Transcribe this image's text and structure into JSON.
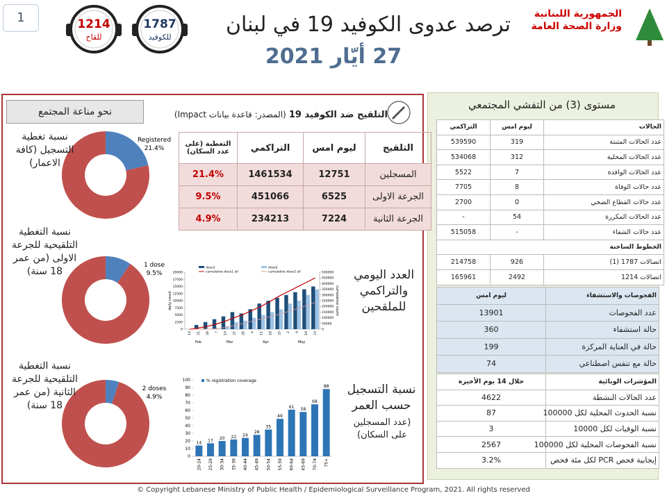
{
  "header": {
    "page_number": "1",
    "ministry": "الجمهورية اللبنانية",
    "ministry_sub": "وزارة الصحة العامة",
    "title": "ترصد عدوى الكوفيد 19 في لبنان",
    "date": "27 أيّار 2021",
    "hotlines": [
      {
        "number": "1787",
        "label": "للكوفيد"
      },
      {
        "number": "1214",
        "label": "للقاح"
      }
    ]
  },
  "vaccination": {
    "heading": "نحو مناعة المجتمع",
    "title": "التلقيح ضد الكوفيد 19",
    "source": "(المصدر: قاعدة بيانات Impact)",
    "donut_colors": {
      "value": "#4f81bd",
      "rest": "#c0504d"
    },
    "donuts": [
      {
        "description": "نسبة تغطية التسجيل (كافة الاعمار)",
        "slice_label": "Registered",
        "value": 21.4,
        "value_label": "21.4%"
      },
      {
        "description": "نسبة التغطية التلقيحية للجرعة الاولى (من عمر 18 سنة)",
        "slice_label": "1 dose",
        "value": 9.5,
        "value_label": "9.5%"
      },
      {
        "description": "نسبة التغطية التلقيحية للجرعة الثانية (من عمر 18 سنة)",
        "slice_label": "2 doses",
        "value": 4.9,
        "value_label": "4.9%"
      }
    ],
    "table": {
      "header": [
        "التلقيح",
        "ليوم امس",
        "التراكمي",
        "التغطية (على عدد السكان)"
      ],
      "rows": [
        [
          "المسجلين",
          12751,
          1461534,
          "21.4%"
        ],
        [
          "الجرعة الاولى",
          6525,
          451066,
          "9.5%"
        ],
        [
          "الجرعة الثانية",
          7224,
          234213,
          "4.9%"
        ]
      ]
    },
    "daily_chart": {
      "type": "bar",
      "title": "العدد اليومي والتراكمي للملقحين",
      "ylabel": "daily count",
      "y2label": "cumulative count",
      "categories": [
        "14",
        "21",
        "28",
        "7",
        "14",
        "21",
        "28",
        "4",
        "11",
        "18",
        "25",
        "2",
        "9",
        "16",
        "23"
      ],
      "months": [
        "Feb",
        "Mar",
        "Apr",
        "May"
      ],
      "series": [
        {
          "name": "dose1",
          "color": "#1f4e79",
          "values": [
            0,
            1500,
            2500,
            3500,
            4500,
            6000,
            5500,
            7000,
            9000,
            10000,
            11000,
            12000,
            13000,
            14000,
            15000
          ]
        },
        {
          "name": "dose2",
          "color": "#9dc3e6",
          "values": [
            0,
            0,
            0,
            0,
            1000,
            2500,
            3000,
            4000,
            5000,
            6000,
            7000,
            9000,
            10000,
            12000,
            14000
          ]
        },
        {
          "name": "cumulative dose1 all",
          "color": "#c00000",
          "axis": "y2",
          "values": [
            0,
            10000,
            25000,
            45000,
            70000,
            100000,
            130000,
            165000,
            200000,
            245000,
            290000,
            330000,
            370000,
            410000,
            450000
          ]
        },
        {
          "name": "cumulative dose2 all",
          "color": "#e6a0a0",
          "axis": "y2",
          "values": [
            0,
            0,
            0,
            5000,
            15000,
            30000,
            50000,
            70000,
            90000,
            110000,
            130000,
            155000,
            180000,
            205000,
            235000
          ]
        }
      ],
      "ylim": [
        0,
        20000
      ],
      "yticks": [
        0,
        2500,
        5000,
        7500,
        10000,
        12500,
        15000,
        17500,
        20000
      ],
      "y2lim": [
        0,
        500000
      ],
      "y2ticks": [
        0,
        50000,
        100000,
        150000,
        200000,
        250000,
        300000,
        350000,
        400000,
        450000,
        500000
      ]
    },
    "age_chart": {
      "type": "bar",
      "title": "نسبة التسجيل حسب العمر",
      "subtitle": "(عدد المسجلين على السكان)",
      "series_name": "% registration coverage",
      "color": "#2e75b6",
      "categories": [
        "20-24",
        "25-29",
        "30-34",
        "35-39",
        "40-44",
        "45-49",
        "50-54",
        "55-59",
        "60-64",
        "65-69",
        "70-74",
        "75+"
      ],
      "values": [
        14,
        17,
        20,
        22,
        24,
        28,
        35,
        49,
        61,
        58,
        68,
        88
      ],
      "ylim": [
        0,
        100
      ],
      "yticks": [
        0,
        10,
        20,
        30,
        40,
        50,
        60,
        70,
        80,
        90,
        100
      ]
    }
  },
  "outbreak": {
    "title": "مستوى (3) من التفشي المجتمعي",
    "cases": {
      "header": [
        "الحالات",
        "ليوم امس",
        "التراكمي"
      ],
      "rows": [
        [
          "عدد الحالات المثبتة",
          319,
          539590
        ],
        [
          "عدد الحالات المحلية",
          312,
          534068
        ],
        [
          "عدد الحالات الوافدة",
          7,
          5522
        ],
        [
          "عدد حالات الوفاة",
          8,
          7705
        ],
        [
          "عدد حالات القطاع الصحي",
          0,
          2700
        ],
        [
          "عدد الحالات المكررة",
          54,
          "-"
        ],
        [
          "عدد حالات الشفاء",
          "-",
          515058
        ]
      ]
    },
    "hotlines": {
      "title": "الخطوط الساخنة",
      "rows": [
        [
          "اتصالات 1787 (1)",
          926,
          214758
        ],
        [
          "اتصالات 1214",
          2492,
          165961
        ]
      ]
    },
    "tests": {
      "header": [
        "الفحوصات والاستشفاء",
        "ليوم امس"
      ],
      "rows": [
        [
          "عدد الفحوصات",
          13901
        ],
        [
          "حالة استشفاء",
          360
        ],
        [
          "حالة في العناية المركزة",
          199
        ],
        [
          "حالة مع تنفس اصطناعي",
          74
        ]
      ]
    },
    "indicators": {
      "header": [
        "المؤشرات الوبائية",
        "خلال 14 يوم الأخيرة"
      ],
      "rows": [
        [
          "عدد الحالات النشطة",
          4622
        ],
        [
          "نسبة الحدوث المحلية لكل 100000",
          87
        ],
        [
          "نسبة الوفيات لكل 10000",
          3
        ],
        [
          "نسبة الفحوصات المحلية لكل 100000",
          2567
        ],
        [
          "إيجابية فحص PCR لكل مئة فحص",
          "3.2%"
        ]
      ]
    }
  },
  "footer": "© Copyright Lebanese Ministry of Public Health / Epidemiological Surveillance Program, 2021. All rights reserved"
}
